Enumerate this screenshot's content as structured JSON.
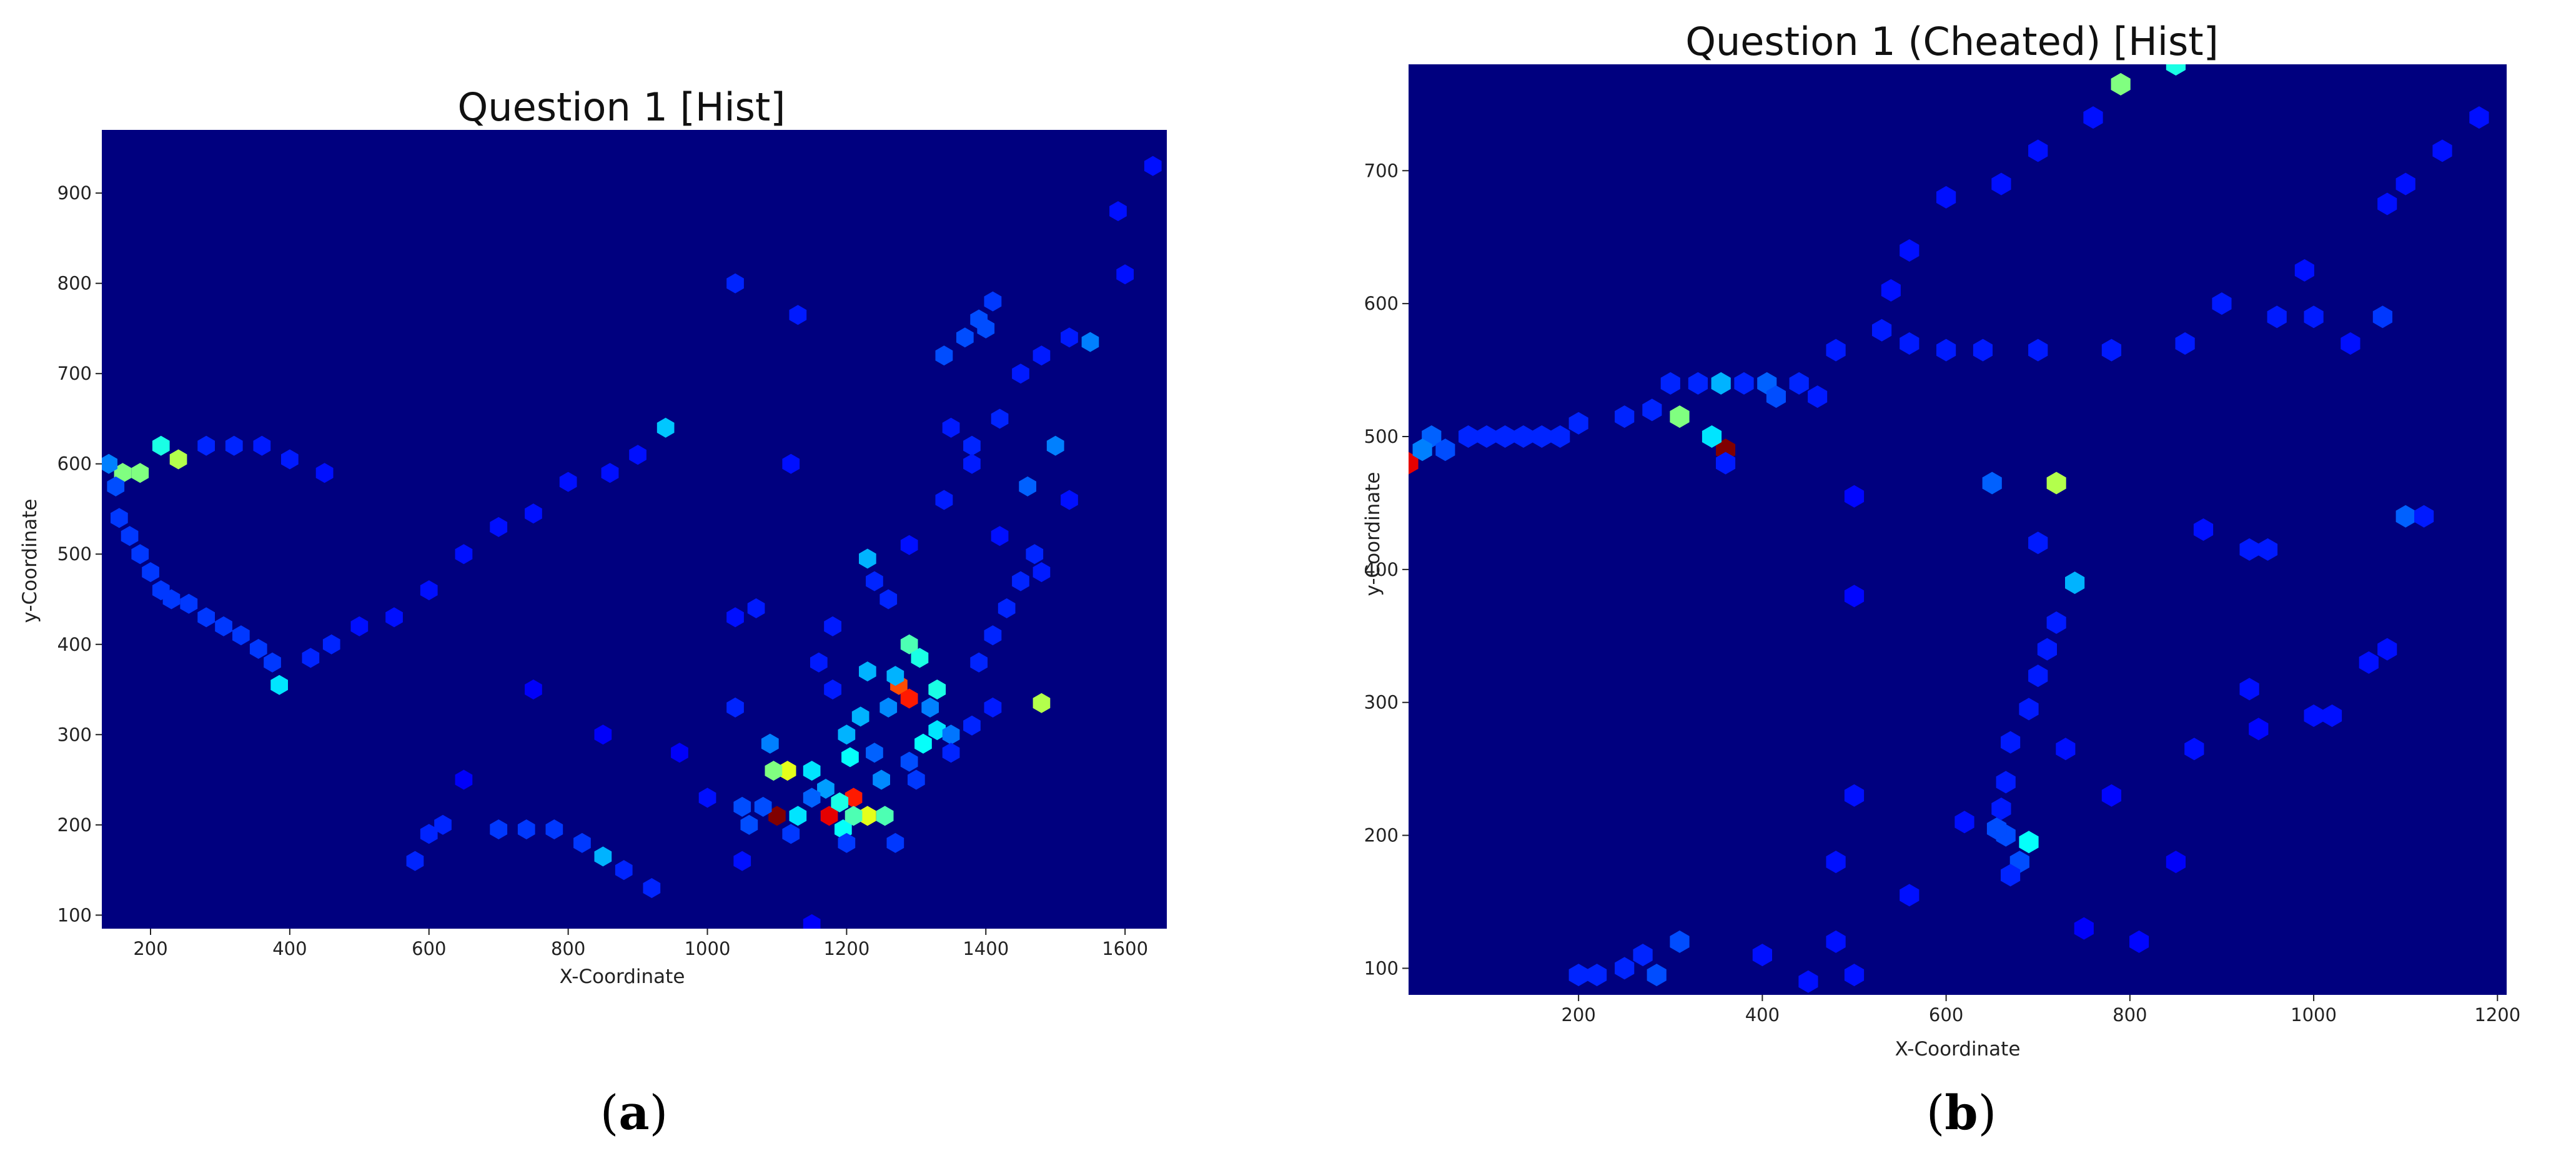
{
  "chart_data": [
    {
      "type": "heatmap",
      "subtype": "hexbin",
      "title": "Question 1 [Hist]",
      "xlabel": "X-Coordinate",
      "ylabel": "y-Coordinate",
      "xlim": [
        130,
        1660
      ],
      "ylim": [
        85,
        970
      ],
      "xticks": [
        200,
        400,
        600,
        800,
        1000,
        1200,
        1400,
        1600
      ],
      "yticks": [
        100,
        200,
        300,
        400,
        500,
        600,
        700,
        800,
        900
      ],
      "colormap": "jet",
      "background_color": "#00007f",
      "grid": false,
      "caption_letter": "a",
      "points": [
        [
          1100,
          210,
          1.0
        ],
        [
          1175,
          210,
          0.9
        ],
        [
          1210,
          230,
          0.85
        ],
        [
          1275,
          355,
          0.8
        ],
        [
          1290,
          340,
          0.85
        ],
        [
          1115,
          260,
          0.6
        ],
        [
          1230,
          210,
          0.6
        ],
        [
          1255,
          210,
          0.45
        ],
        [
          1095,
          260,
          0.5
        ],
        [
          1480,
          335,
          0.55
        ],
        [
          160,
          590,
          0.5
        ],
        [
          185,
          590,
          0.5
        ],
        [
          240,
          605,
          0.55
        ],
        [
          1290,
          400,
          0.45
        ],
        [
          1305,
          385,
          0.4
        ],
        [
          1330,
          350,
          0.4
        ],
        [
          1205,
          275,
          0.38
        ],
        [
          1220,
          320,
          0.3
        ],
        [
          1195,
          195,
          0.38
        ],
        [
          1150,
          260,
          0.35
        ],
        [
          1330,
          305,
          0.35
        ],
        [
          1310,
          290,
          0.38
        ],
        [
          1210,
          210,
          0.45
        ],
        [
          1190,
          225,
          0.4
        ],
        [
          1130,
          210,
          0.35
        ],
        [
          385,
          355,
          0.35
        ],
        [
          940,
          640,
          0.32
        ],
        [
          215,
          620,
          0.4
        ],
        [
          1230,
          495,
          0.3
        ],
        [
          850,
          165,
          0.3
        ],
        [
          1550,
          735,
          0.25
        ],
        [
          1270,
          365,
          0.3
        ],
        [
          1200,
          300,
          0.3
        ],
        [
          1170,
          240,
          0.28
        ],
        [
          1250,
          250,
          0.26
        ],
        [
          1500,
          620,
          0.25
        ],
        [
          1460,
          575,
          0.22
        ],
        [
          1230,
          370,
          0.3
        ],
        [
          1260,
          330,
          0.26
        ],
        [
          1350,
          300,
          0.24
        ],
        [
          1390,
          760,
          0.2
        ],
        [
          1400,
          750,
          0.2
        ],
        [
          1370,
          740,
          0.2
        ],
        [
          1340,
          720,
          0.2
        ],
        [
          1410,
          780,
          0.18
        ],
        [
          1090,
          290,
          0.25
        ],
        [
          1320,
          330,
          0.25
        ],
        [
          1150,
          230,
          0.22
        ],
        [
          1240,
          280,
          0.22
        ],
        [
          1290,
          270,
          0.2
        ],
        [
          140,
          600,
          0.25
        ],
        [
          150,
          575,
          0.2
        ],
        [
          155,
          540,
          0.18
        ],
        [
          170,
          520,
          0.18
        ],
        [
          185,
          500,
          0.18
        ],
        [
          200,
          480,
          0.18
        ],
        [
          215,
          460,
          0.18
        ],
        [
          230,
          450,
          0.18
        ],
        [
          255,
          445,
          0.18
        ],
        [
          280,
          430,
          0.18
        ],
        [
          305,
          420,
          0.18
        ],
        [
          330,
          410,
          0.18
        ],
        [
          355,
          395,
          0.18
        ],
        [
          375,
          380,
          0.18
        ],
        [
          430,
          385,
          0.16
        ],
        [
          460,
          400,
          0.16
        ],
        [
          500,
          420,
          0.14
        ],
        [
          550,
          430,
          0.14
        ],
        [
          600,
          460,
          0.14
        ],
        [
          650,
          500,
          0.14
        ],
        [
          700,
          530,
          0.14
        ],
        [
          750,
          545,
          0.14
        ],
        [
          800,
          580,
          0.14
        ],
        [
          860,
          590,
          0.14
        ],
        [
          900,
          610,
          0.14
        ],
        [
          280,
          620,
          0.16
        ],
        [
          320,
          620,
          0.16
        ],
        [
          360,
          620,
          0.15
        ],
        [
          400,
          605,
          0.15
        ],
        [
          450,
          590,
          0.14
        ],
        [
          580,
          160,
          0.16
        ],
        [
          600,
          190,
          0.16
        ],
        [
          620,
          200,
          0.16
        ],
        [
          700,
          195,
          0.18
        ],
        [
          740,
          195,
          0.18
        ],
        [
          780,
          195,
          0.18
        ],
        [
          820,
          180,
          0.18
        ],
        [
          880,
          150,
          0.16
        ],
        [
          920,
          130,
          0.16
        ],
        [
          1040,
          800,
          0.16
        ],
        [
          1130,
          765,
          0.15
        ],
        [
          1120,
          600,
          0.14
        ],
        [
          1350,
          640,
          0.15
        ],
        [
          1380,
          620,
          0.16
        ],
        [
          1420,
          650,
          0.16
        ],
        [
          1450,
          700,
          0.15
        ],
        [
          1480,
          720,
          0.15
        ],
        [
          1520,
          740,
          0.15
        ],
        [
          1600,
          810,
          0.14
        ],
        [
          1640,
          930,
          0.14
        ],
        [
          1590,
          880,
          0.14
        ],
        [
          1470,
          500,
          0.16
        ],
        [
          1450,
          470,
          0.16
        ],
        [
          1430,
          440,
          0.16
        ],
        [
          1410,
          410,
          0.16
        ],
        [
          1390,
          380,
          0.16
        ],
        [
          1050,
          220,
          0.2
        ],
        [
          1060,
          200,
          0.2
        ],
        [
          1080,
          220,
          0.2
        ],
        [
          1270,
          180,
          0.18
        ],
        [
          1200,
          180,
          0.18
        ],
        [
          1120,
          190,
          0.18
        ],
        [
          1040,
          330,
          0.16
        ],
        [
          1040,
          430,
          0.14
        ],
        [
          1070,
          440,
          0.15
        ],
        [
          1160,
          380,
          0.15
        ],
        [
          1180,
          420,
          0.15
        ],
        [
          1240,
          470,
          0.16
        ],
        [
          1260,
          450,
          0.16
        ],
        [
          1290,
          510,
          0.14
        ],
        [
          1340,
          560,
          0.15
        ],
        [
          1380,
          600,
          0.15
        ],
        [
          1420,
          520,
          0.14
        ],
        [
          1480,
          480,
          0.15
        ],
        [
          1520,
          560,
          0.14
        ],
        [
          1050,
          160,
          0.14
        ],
        [
          1150,
          90,
          0.12
        ],
        [
          650,
          250,
          0.12
        ],
        [
          850,
          300,
          0.12
        ],
        [
          750,
          350,
          0.12
        ],
        [
          960,
          280,
          0.12
        ],
        [
          1000,
          230,
          0.14
        ],
        [
          1180,
          350,
          0.15
        ],
        [
          1300,
          250,
          0.18
        ],
        [
          1350,
          280,
          0.16
        ],
        [
          1380,
          310,
          0.16
        ],
        [
          1410,
          330,
          0.15
        ]
      ]
    },
    {
      "type": "heatmap",
      "subtype": "hexbin",
      "title": "Question 1 (Cheated) [Hist]",
      "xlabel": "X-Coordinate",
      "ylabel": "y-Coordinate",
      "xlim": [
        15,
        1210
      ],
      "ylim": [
        80,
        780
      ],
      "xticks": [
        200,
        400,
        600,
        800,
        1000,
        1200
      ],
      "yticks": [
        100,
        200,
        300,
        400,
        500,
        600,
        700
      ],
      "colormap": "jet",
      "background_color": "#00007f",
      "grid": false,
      "caption_letter": "b",
      "points": [
        [
          360,
          490,
          1.0
        ],
        [
          15,
          480,
          0.9
        ],
        [
          720,
          465,
          0.55
        ],
        [
          310,
          515,
          0.5
        ],
        [
          790,
          765,
          0.5
        ],
        [
          690,
          195,
          0.38
        ],
        [
          345,
          500,
          0.35
        ],
        [
          740,
          390,
          0.3
        ],
        [
          355,
          540,
          0.3
        ],
        [
          850,
          780,
          0.4
        ],
        [
          1100,
          440,
          0.22
        ],
        [
          40,
          500,
          0.22
        ],
        [
          30,
          490,
          0.25
        ],
        [
          55,
          490,
          0.2
        ],
        [
          650,
          465,
          0.22
        ],
        [
          405,
          540,
          0.22
        ],
        [
          415,
          530,
          0.2
        ],
        [
          665,
          200,
          0.2
        ],
        [
          655,
          205,
          0.2
        ],
        [
          680,
          180,
          0.2
        ],
        [
          310,
          120,
          0.2
        ],
        [
          285,
          95,
          0.2
        ],
        [
          1075,
          590,
          0.18
        ],
        [
          80,
          500,
          0.16
        ],
        [
          100,
          500,
          0.16
        ],
        [
          120,
          500,
          0.16
        ],
        [
          140,
          500,
          0.16
        ],
        [
          160,
          500,
          0.16
        ],
        [
          180,
          500,
          0.16
        ],
        [
          200,
          510,
          0.16
        ],
        [
          250,
          515,
          0.16
        ],
        [
          280,
          520,
          0.16
        ],
        [
          300,
          540,
          0.16
        ],
        [
          330,
          540,
          0.16
        ],
        [
          380,
          540,
          0.16
        ],
        [
          440,
          540,
          0.16
        ],
        [
          460,
          530,
          0.15
        ],
        [
          480,
          565,
          0.15
        ],
        [
          530,
          580,
          0.15
        ],
        [
          560,
          570,
          0.15
        ],
        [
          600,
          565,
          0.15
        ],
        [
          640,
          565,
          0.15
        ],
        [
          700,
          565,
          0.15
        ],
        [
          780,
          565,
          0.15
        ],
        [
          860,
          570,
          0.15
        ],
        [
          900,
          600,
          0.15
        ],
        [
          960,
          590,
          0.15
        ],
        [
          1000,
          590,
          0.15
        ],
        [
          1040,
          570,
          0.14
        ],
        [
          540,
          610,
          0.14
        ],
        [
          560,
          640,
          0.14
        ],
        [
          600,
          680,
          0.14
        ],
        [
          660,
          690,
          0.14
        ],
        [
          700,
          715,
          0.14
        ],
        [
          760,
          740,
          0.14
        ],
        [
          1100,
          690,
          0.14
        ],
        [
          1140,
          715,
          0.14
        ],
        [
          1180,
          740,
          0.14
        ],
        [
          1080,
          675,
          0.14
        ],
        [
          990,
          625,
          0.14
        ],
        [
          700,
          420,
          0.15
        ],
        [
          720,
          360,
          0.15
        ],
        [
          710,
          340,
          0.15
        ],
        [
          700,
          320,
          0.15
        ],
        [
          690,
          295,
          0.15
        ],
        [
          670,
          270,
          0.15
        ],
        [
          665,
          240,
          0.15
        ],
        [
          660,
          220,
          0.15
        ],
        [
          670,
          170,
          0.16
        ],
        [
          730,
          265,
          0.14
        ],
        [
          200,
          95,
          0.16
        ],
        [
          220,
          95,
          0.16
        ],
        [
          250,
          100,
          0.16
        ],
        [
          270,
          110,
          0.16
        ],
        [
          400,
          110,
          0.14
        ],
        [
          450,
          90,
          0.14
        ],
        [
          480,
          120,
          0.14
        ],
        [
          500,
          95,
          0.14
        ],
        [
          560,
          155,
          0.14
        ],
        [
          620,
          210,
          0.14
        ],
        [
          500,
          230,
          0.14
        ],
        [
          480,
          180,
          0.14
        ],
        [
          500,
          380,
          0.13
        ],
        [
          500,
          455,
          0.13
        ],
        [
          360,
          480,
          0.15
        ],
        [
          880,
          430,
          0.14
        ],
        [
          930,
          415,
          0.15
        ],
        [
          950,
          415,
          0.15
        ],
        [
          930,
          310,
          0.14
        ],
        [
          1000,
          290,
          0.14
        ],
        [
          1020,
          290,
          0.14
        ],
        [
          1060,
          330,
          0.14
        ],
        [
          1080,
          340,
          0.14
        ],
        [
          940,
          280,
          0.13
        ],
        [
          870,
          265,
          0.14
        ],
        [
          780,
          230,
          0.13
        ],
        [
          810,
          120,
          0.13
        ],
        [
          850,
          180,
          0.12
        ],
        [
          750,
          130,
          0.12
        ],
        [
          1120,
          440,
          0.15
        ]
      ]
    }
  ]
}
